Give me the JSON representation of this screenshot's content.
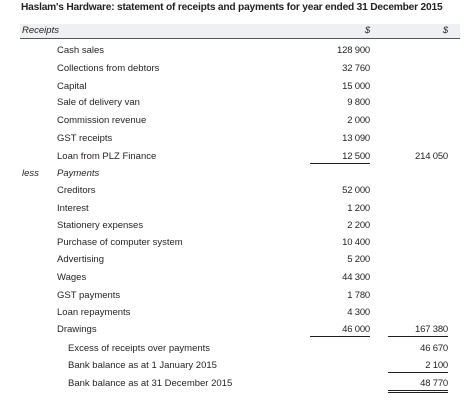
{
  "title": "Haslam's Hardware: statement of receipts and payments for year ended 31 December 2015",
  "header": {
    "label": "Receipts",
    "col1": "$",
    "col2": "$"
  },
  "receipts": [
    {
      "label": "Cash sales",
      "amount": "128 900"
    },
    {
      "label": "Collections from debtors",
      "amount": "32 760"
    },
    {
      "label": "Capital",
      "amount": "15 000"
    },
    {
      "label": "Sale of delivery van",
      "amount": "9 800"
    },
    {
      "label": "Commission revenue",
      "amount": "2 000"
    },
    {
      "label": "GST receipts",
      "amount": "13 090"
    },
    {
      "label": "Loan from PLZ Finance",
      "amount": "12 500",
      "total": "214 050"
    }
  ],
  "payments_heading": {
    "prefix": "less",
    "label": "Payments"
  },
  "payments": [
    {
      "label": "Creditors",
      "amount": "52 000"
    },
    {
      "label": "Interest",
      "amount": "1 200"
    },
    {
      "label": "Stationery expenses",
      "amount": "2 200"
    },
    {
      "label": "Purchase of computer system",
      "amount": "10 400"
    },
    {
      "label": "Advertising",
      "amount": "5 200"
    },
    {
      "label": "Wages",
      "amount": "44 300"
    },
    {
      "label": "GST payments",
      "amount": "1 780"
    },
    {
      "label": "Loan repayments",
      "amount": "4 300"
    },
    {
      "label": "Drawings",
      "amount": "46 000",
      "total": "167 380"
    }
  ],
  "summary": [
    {
      "label": "Excess of receipts over payments",
      "total": "46 670"
    },
    {
      "label": "Bank balance as at 1 January 2015",
      "total": "2 100"
    },
    {
      "label": "Bank balance as at 31 December 2015",
      "total": "48 770"
    }
  ]
}
